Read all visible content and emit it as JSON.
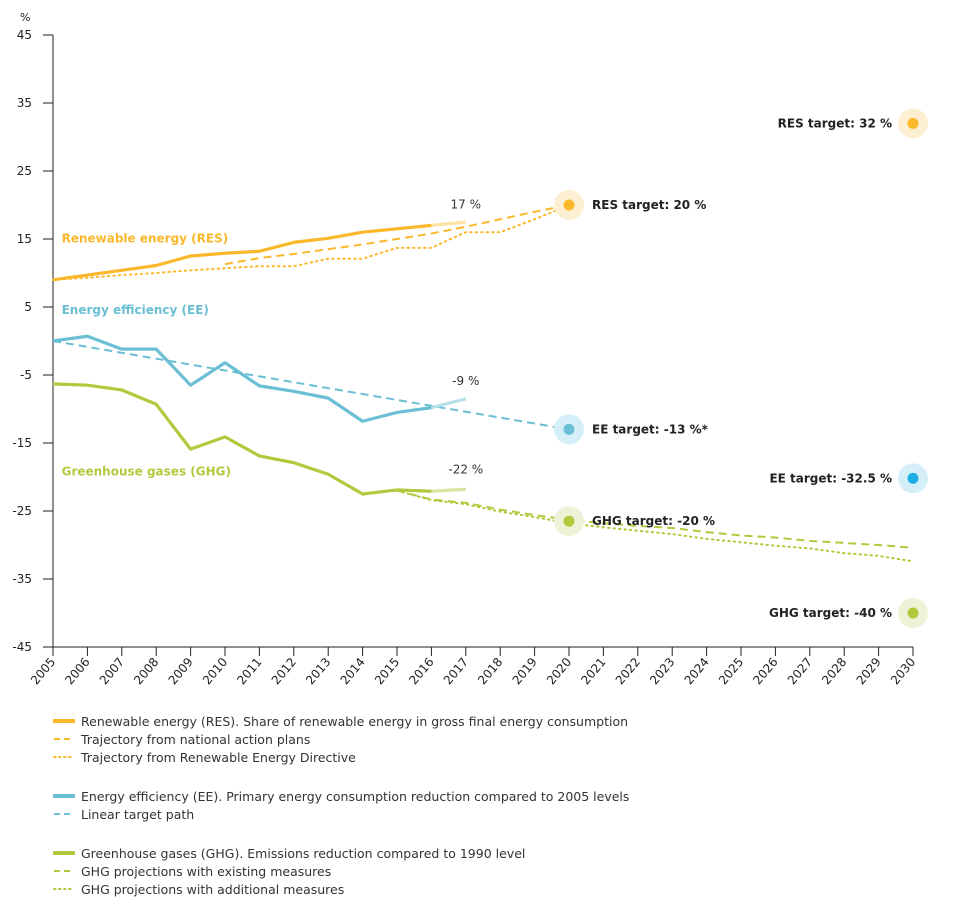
{
  "chart_data": {
    "type": "line",
    "title": "",
    "ylabel": "%",
    "xlabel": "",
    "ylim": [
      -45,
      45
    ],
    "yticks": [
      45,
      35,
      25,
      15,
      5,
      -5,
      -15,
      -25,
      -35,
      -45
    ],
    "xlim": [
      2005,
      2030
    ],
    "x": [
      2005,
      2006,
      2007,
      2008,
      2009,
      2010,
      2011,
      2012,
      2013,
      2014,
      2015,
      2016,
      2017,
      2018,
      2019,
      2020,
      2021,
      2022,
      2023,
      2024,
      2025,
      2026,
      2027,
      2028,
      2029,
      2030
    ],
    "grid": false,
    "colors": {
      "res": "#fbb82b",
      "res_light": "#fde4a6",
      "res_halo": "#fdf0d2",
      "ee": "#6bbfd4",
      "ee_light": "#b7e0ea",
      "ee_halo": "#d4eff8",
      "ee_target_2030": "#1eaee6",
      "ghg": "#b2c93e",
      "ghg_light": "#d8e59e",
      "ghg_halo": "#eef3d8"
    },
    "series": [
      {
        "id": "res",
        "name": "Renewable energy (RES)",
        "style": "solid",
        "color_key": "res",
        "x": [
          2005,
          2006,
          2007,
          2008,
          2009,
          2010,
          2011,
          2012,
          2013,
          2014,
          2015,
          2016,
          2017
        ],
        "values": [
          9.0,
          9.7,
          10.4,
          11.1,
          12.5,
          12.9,
          13.2,
          14.5,
          15.1,
          16.0,
          16.5,
          17.0,
          17.5
        ],
        "proxy_from": 2016
      },
      {
        "id": "res-nap",
        "name": "Trajectory from national action plans",
        "style": "dashed",
        "color_key": "res",
        "x": [
          2010,
          2011,
          2012,
          2013,
          2014,
          2015,
          2016,
          2017,
          2018,
          2019,
          2020
        ],
        "values": [
          11.3,
          12.2,
          12.8,
          13.5,
          14.2,
          15.0,
          15.8,
          16.8,
          17.9,
          19.0,
          20.0
        ]
      },
      {
        "id": "res-directive",
        "name": "Trajectory from Renewable Energy Directive",
        "style": "dotted",
        "color_key": "res",
        "x": [
          2005,
          2006,
          2007,
          2008,
          2009,
          2010,
          2011,
          2012,
          2013,
          2014,
          2015,
          2016,
          2017,
          2018,
          2019,
          2020
        ],
        "values": [
          9.0,
          9.3,
          9.7,
          10.0,
          10.4,
          10.7,
          11.0,
          11.0,
          12.1,
          12.1,
          13.7,
          13.7,
          16.0,
          16.0,
          17.9,
          20.0
        ]
      },
      {
        "id": "ee",
        "name": "Energy efficiency (EE)",
        "style": "solid",
        "color_key": "ee",
        "x": [
          2005,
          2006,
          2007,
          2008,
          2009,
          2010,
          2011,
          2012,
          2013,
          2014,
          2015,
          2016,
          2017
        ],
        "values": [
          0.0,
          0.7,
          -1.2,
          -1.2,
          -6.5,
          -3.2,
          -6.6,
          -7.4,
          -8.4,
          -11.8,
          -10.5,
          -9.8,
          -8.5
        ],
        "proxy_from": 2016
      },
      {
        "id": "ee-linear",
        "name": "Linear target path",
        "style": "dashed",
        "color_key": "ee",
        "x": [
          2005,
          2020
        ],
        "values": [
          0.0,
          -13.0
        ]
      },
      {
        "id": "ghg",
        "name": "Greenhouse gases (GHG)",
        "style": "solid",
        "color_key": "ghg",
        "x": [
          2005,
          2006,
          2007,
          2008,
          2009,
          2010,
          2011,
          2012,
          2013,
          2014,
          2015,
          2016,
          2017
        ],
        "values": [
          -6.3,
          -6.5,
          -7.2,
          -9.3,
          -15.9,
          -14.1,
          -16.9,
          -17.9,
          -19.6,
          -22.5,
          -21.9,
          -22.1,
          -21.8
        ],
        "proxy_from": 2016
      },
      {
        "id": "ghg-wem",
        "name": "GHG projections with existing measures",
        "style": "dashed",
        "color_key": "ghg",
        "x": [
          2015,
          2016,
          2017,
          2018,
          2019,
          2020,
          2021,
          2022,
          2023,
          2024,
          2025,
          2026,
          2027,
          2028,
          2029,
          2030
        ],
        "values": [
          -22.0,
          -23.3,
          -23.8,
          -24.8,
          -25.6,
          -26.3,
          -26.8,
          -27.2,
          -27.5,
          -28.1,
          -28.6,
          -28.9,
          -29.4,
          -29.7,
          -30.0,
          -30.4
        ]
      },
      {
        "id": "ghg-wam",
        "name": "GHG projections with additional measures",
        "style": "dotted",
        "color_key": "ghg",
        "x": [
          2015,
          2016,
          2017,
          2018,
          2019,
          2020,
          2021,
          2022,
          2023,
          2024,
          2025,
          2026,
          2027,
          2028,
          2029,
          2030
        ],
        "values": [
          -22.0,
          -23.4,
          -24.0,
          -25.1,
          -25.9,
          -26.8,
          -27.4,
          -27.9,
          -28.4,
          -29.1,
          -29.6,
          -30.1,
          -30.5,
          -31.2,
          -31.6,
          -32.4
        ]
      }
    ],
    "series_titles": [
      {
        "id": "res",
        "text": "Renewable energy (RES)",
        "color_key": "res",
        "x": 2005.25,
        "y": 14.5
      },
      {
        "id": "ee",
        "text": "Energy efficiency (EE)",
        "color_key": "ee",
        "x": 2005.25,
        "y": 4.0
      },
      {
        "id": "ghg",
        "text": "Greenhouse gases (GHG)",
        "color_key": "ghg",
        "x": 2005.25,
        "y": -19.8
      }
    ],
    "end_labels": [
      {
        "series": "res",
        "text": "17 %",
        "x": 2017,
        "y": 19.5
      },
      {
        "series": "ee",
        "text": "-9 %",
        "x": 2017,
        "y": -6.5
      },
      {
        "series": "ghg",
        "text": "-22 %",
        "x": 2017,
        "y": -19.5
      }
    ],
    "targets": [
      {
        "id": "res-2020",
        "label": "RES target: 20 %",
        "x": 2020,
        "value": 20,
        "color_key": "res",
        "halo_key": "res_halo",
        "label_side": "right"
      },
      {
        "id": "ee-2020",
        "label": "EE target: -13 %*",
        "x": 2020,
        "value": -13,
        "color_key": "ee",
        "halo_key": "ee_halo",
        "label_side": "right"
      },
      {
        "id": "ghg-2020",
        "label": "GHG target: -20 %",
        "x": 2020,
        "value": -20,
        "color_key": "ghg",
        "halo_key": "ghg_halo",
        "label_side": "right",
        "marker_offset": -6.5
      },
      {
        "id": "res-2030",
        "label": "RES target: 32 %",
        "x": 2030,
        "value": 32,
        "color_key": "res",
        "halo_key": "res_halo",
        "label_side": "left"
      },
      {
        "id": "ee-2030",
        "label": "EE target: -32.5 %",
        "x": 2030,
        "value": -32.5,
        "color_key": "ee_target_2030",
        "halo_key": "ee_halo",
        "label_side": "left",
        "marker_offset": 12.3
      },
      {
        "id": "ghg-2030",
        "label": "GHG target: -40 %",
        "x": 2030,
        "value": -40,
        "color_key": "ghg",
        "halo_key": "ghg_halo",
        "label_side": "left"
      }
    ]
  },
  "legend": {
    "groups": [
      {
        "items": [
          {
            "style": "solid",
            "color_key": "res",
            "label": "Renewable energy (RES). Share of renewable energy in gross final energy consumption"
          },
          {
            "style": "dashed",
            "color_key": "res",
            "label": "Trajectory from national action plans"
          },
          {
            "style": "dotted",
            "color_key": "res",
            "label": "Trajectory from Renewable Energy Directive"
          }
        ]
      },
      {
        "items": [
          {
            "style": "solid",
            "color_key": "ee",
            "label": "Energy efficiency (EE). Primary energy consumption reduction compared to 2005 levels"
          },
          {
            "style": "dashed",
            "color_key": "ee",
            "label": "Linear target path"
          }
        ]
      },
      {
        "items": [
          {
            "style": "solid",
            "color_key": "ghg",
            "label": "Greenhouse gases (GHG). Emissions reduction compared to 1990 level"
          },
          {
            "style": "dashed",
            "color_key": "ghg",
            "label": "GHG projections with existing measures"
          },
          {
            "style": "dotted",
            "color_key": "ghg",
            "label": "GHG projections with additional measures"
          }
        ]
      }
    ]
  }
}
